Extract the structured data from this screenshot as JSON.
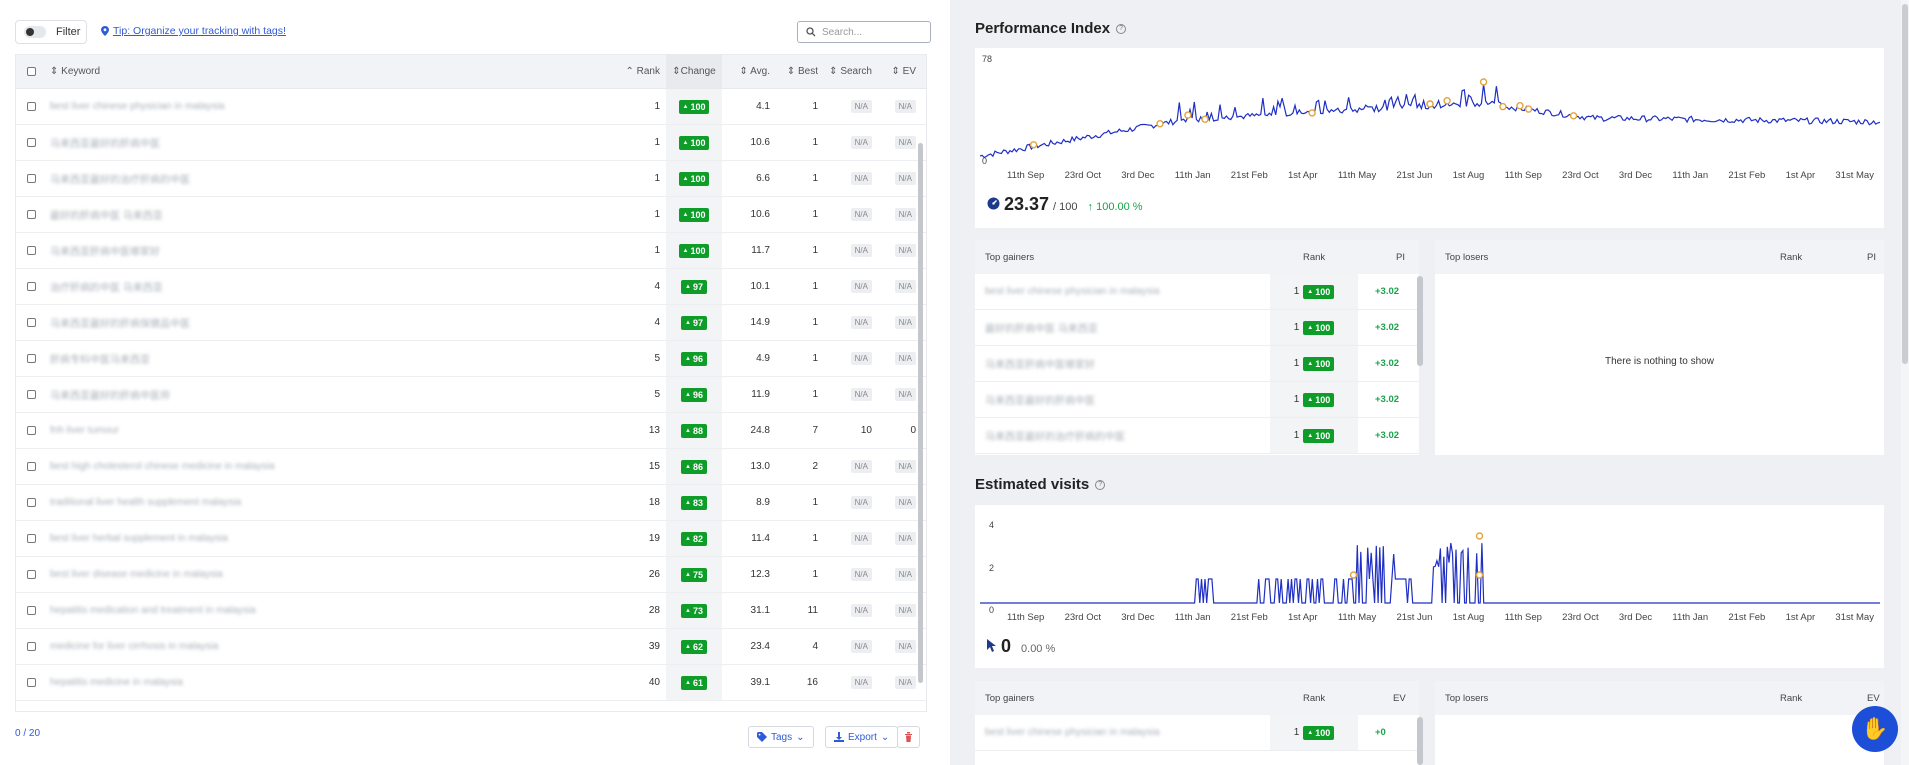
{
  "toolbar": {
    "filter_label": "Filter",
    "tip": "Tip: Organize your tracking with tags!",
    "search_placeholder": "Search..."
  },
  "table": {
    "headers": {
      "keyword": "Keyword",
      "rank": "Rank",
      "change": "Change",
      "avg": "Avg.",
      "best": "Best",
      "search": "Search",
      "ev": "EV"
    },
    "rows": [
      {
        "keyword": "best liver chinese physician in malaysia",
        "rank": "1",
        "change": "100",
        "avg": "4.1",
        "best": "1",
        "search": "N/A",
        "ev": "N/A"
      },
      {
        "keyword": "马来西亚最好的肝病中医",
        "rank": "1",
        "change": "100",
        "avg": "10.6",
        "best": "1",
        "search": "N/A",
        "ev": "N/A"
      },
      {
        "keyword": "马来西亚最好的治疗肝病的中医",
        "rank": "1",
        "change": "100",
        "avg": "6.6",
        "best": "1",
        "search": "N/A",
        "ev": "N/A"
      },
      {
        "keyword": "最好的肝病中医 马来西亚",
        "rank": "1",
        "change": "100",
        "avg": "10.6",
        "best": "1",
        "search": "N/A",
        "ev": "N/A"
      },
      {
        "keyword": "马来西亚肝病中医哪家好",
        "rank": "1",
        "change": "100",
        "avg": "11.7",
        "best": "1",
        "search": "N/A",
        "ev": "N/A"
      },
      {
        "keyword": "治疗肝病的中医 马来西亚",
        "rank": "4",
        "change": "97",
        "avg": "10.1",
        "best": "1",
        "search": "N/A",
        "ev": "N/A"
      },
      {
        "keyword": "马来西亚最好的肝病保健品中医",
        "rank": "4",
        "change": "97",
        "avg": "14.9",
        "best": "1",
        "search": "N/A",
        "ev": "N/A"
      },
      {
        "keyword": "肝病专科中医马来西亚",
        "rank": "5",
        "change": "96",
        "avg": "4.9",
        "best": "1",
        "search": "N/A",
        "ev": "N/A"
      },
      {
        "keyword": "马来西亚最好的肝病中医师",
        "rank": "5",
        "change": "96",
        "avg": "11.9",
        "best": "1",
        "search": "N/A",
        "ev": "N/A"
      },
      {
        "keyword": "fnh liver tumour",
        "rank": "13",
        "change": "88",
        "avg": "24.8",
        "best": "7",
        "search": "10",
        "ev": "0"
      },
      {
        "keyword": "best high cholesterol chinese medicine in malaysia",
        "rank": "15",
        "change": "86",
        "avg": "13.0",
        "best": "2",
        "search": "N/A",
        "ev": "N/A"
      },
      {
        "keyword": "traditional liver health supplement malaysia",
        "rank": "18",
        "change": "83",
        "avg": "8.9",
        "best": "1",
        "search": "N/A",
        "ev": "N/A"
      },
      {
        "keyword": "best liver herbal supplement in malaysia",
        "rank": "19",
        "change": "82",
        "avg": "11.4",
        "best": "1",
        "search": "N/A",
        "ev": "N/A"
      },
      {
        "keyword": "best liver disease medicine in malaysia",
        "rank": "26",
        "change": "75",
        "avg": "12.3",
        "best": "1",
        "search": "N/A",
        "ev": "N/A"
      },
      {
        "keyword": "hepatitis medication and treatment in malaysia",
        "rank": "28",
        "change": "73",
        "avg": "31.1",
        "best": "11",
        "search": "N/A",
        "ev": "N/A"
      },
      {
        "keyword": "medicine for liver cirrhosis in malaysia",
        "rank": "39",
        "change": "62",
        "avg": "23.4",
        "best": "4",
        "search": "N/A",
        "ev": "N/A"
      },
      {
        "keyword": "hepatitis medicine in malaysia",
        "rank": "40",
        "change": "61",
        "avg": "39.1",
        "best": "16",
        "search": "N/A",
        "ev": "N/A"
      }
    ]
  },
  "footer": {
    "count": "0 / 20",
    "tags": "Tags",
    "export": "Export"
  },
  "perf": {
    "title": "Performance Index",
    "ymax": "78",
    "ymin": "0",
    "score": "23.37",
    "score_max": "/ 100",
    "delta": "100.00 %",
    "dates": [
      "11th Sep",
      "23rd Oct",
      "3rd Dec",
      "11th Jan",
      "21st Feb",
      "1st Apr",
      "11th May",
      "21st Jun",
      "1st Aug",
      "11th Sep",
      "23rd Oct",
      "3rd Dec",
      "11th Jan",
      "21st Feb",
      "1st Apr",
      "31st May"
    ]
  },
  "gainers": {
    "title": "Top gainers",
    "rank": "Rank",
    "pi": "PI",
    "rows": [
      {
        "keyword": "best liver chinese physician in malaysia",
        "rank": "1",
        "change": "100",
        "pi": "+3.02"
      },
      {
        "keyword": "最好的肝病中医 马来西亚",
        "rank": "1",
        "change": "100",
        "pi": "+3.02"
      },
      {
        "keyword": "马来西亚肝病中医哪家好",
        "rank": "1",
        "change": "100",
        "pi": "+3.02"
      },
      {
        "keyword": "马来西亚最好的肝病中医",
        "rank": "1",
        "change": "100",
        "pi": "+3.02"
      },
      {
        "keyword": "马来西亚最好的治疗肝病的中医",
        "rank": "1",
        "change": "100",
        "pi": "+3.02"
      }
    ]
  },
  "losers": {
    "title": "Top losers",
    "rank": "Rank",
    "pi": "PI",
    "empty": "There is nothing to show"
  },
  "visits": {
    "title": "Estimated visits",
    "y4": "4",
    "y2": "2",
    "y0": "0",
    "value": "0",
    "delta": "0.00 %",
    "dates": [
      "11th Sep",
      "23rd Oct",
      "3rd Dec",
      "11th Jan",
      "21st Feb",
      "1st Apr",
      "11th May",
      "21st Jun",
      "1st Aug",
      "11th Sep",
      "23rd Oct",
      "3rd Dec",
      "11th Jan",
      "21st Feb",
      "1st Apr",
      "31st May"
    ]
  },
  "gainers2": {
    "title": "Top gainers",
    "rank": "Rank",
    "ev": "EV",
    "rows": [
      {
        "keyword": "best liver chinese physician in malaysia",
        "rank": "1",
        "change": "100",
        "ev": "+0"
      }
    ]
  },
  "losers2": {
    "title": "Top losers",
    "rank": "Rank",
    "ev": "EV"
  },
  "colors": {
    "accent": "#2f5bd6",
    "green": "#0f9d2a",
    "line": "#1f2fc4"
  }
}
